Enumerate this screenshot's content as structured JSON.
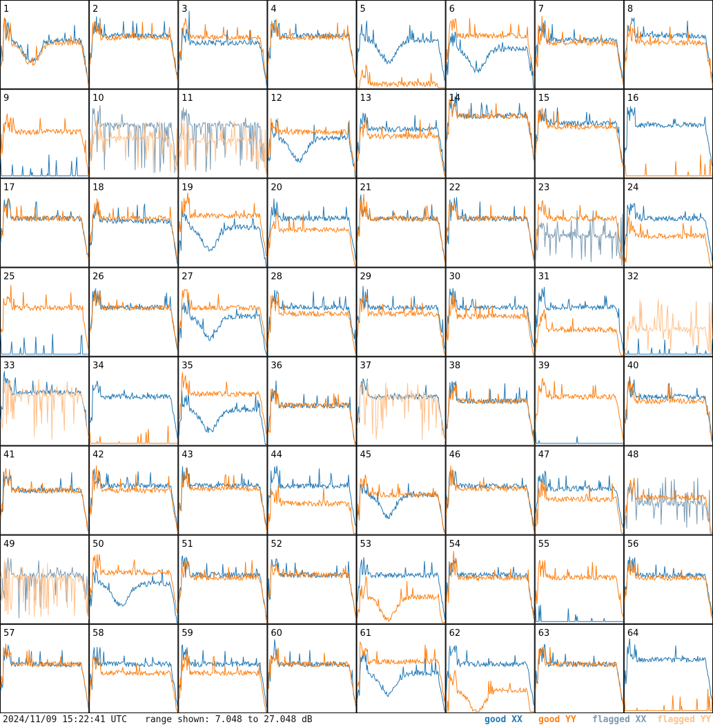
{
  "footer": {
    "timestamp": "2024/11/09 15:22:41 UTC",
    "range_text": "range shown: 7.048 to 27.048 dB"
  },
  "legend": [
    {
      "label": "good XX",
      "color": "#1f77b4"
    },
    {
      "label": "good YY",
      "color": "#ff7f0e"
    },
    {
      "label": "flagged XX",
      "color": "#7a9ab2"
    },
    {
      "label": "flagged YY",
      "color": "#ffc08a"
    }
  ],
  "chart_data": {
    "type": "line",
    "range_db": [
      7.048,
      27.048
    ],
    "layout": "8x8 small multiples",
    "panels": [
      {
        "id": "1",
        "xx": "dip",
        "yy": "good",
        "xx_level": 0.55,
        "yy_level": 0.52,
        "yy_variant": "dip"
      },
      {
        "id": "2",
        "xx": "good",
        "yy": "good",
        "xx_level": 0.6,
        "yy_level": 0.58
      },
      {
        "id": "3",
        "xx": "good",
        "yy": "good",
        "xx_level": 0.52,
        "yy_level": 0.58
      },
      {
        "id": "4",
        "xx": "good",
        "yy": "good",
        "xx_level": 0.6,
        "yy_level": 0.58
      },
      {
        "id": "5",
        "xx": "dip",
        "yy": "good",
        "xx_level": 0.55,
        "yy_level": 0.05,
        "yy_variant": "dead"
      },
      {
        "id": "6",
        "xx": "dip",
        "yy": "good",
        "xx_level": 0.45,
        "yy_level": 0.6
      },
      {
        "id": "7",
        "xx": "good",
        "yy": "good",
        "xx_level": 0.55,
        "yy_level": 0.52
      },
      {
        "id": "8",
        "xx": "good",
        "yy": "good",
        "xx_level": 0.6,
        "yy_level": 0.52
      },
      {
        "id": "9",
        "xx": "dead",
        "yy": "good",
        "xx_level": 0.05,
        "yy_level": 0.52
      },
      {
        "id": "10",
        "xx": "flagged",
        "yy": "flagged",
        "xx_level": 0.6,
        "yy_level": 0.45
      },
      {
        "id": "11",
        "xx": "flagged",
        "yy": "flagged",
        "xx_level": 0.6,
        "yy_level": 0.42
      },
      {
        "id": "12",
        "xx": "dip",
        "yy": "good",
        "xx_level": 0.45,
        "yy_level": 0.52
      },
      {
        "id": "13",
        "xx": "good",
        "yy": "good",
        "xx_level": 0.55,
        "yy_level": 0.47
      },
      {
        "id": "14",
        "xx": "good",
        "yy": "good",
        "xx_level": 0.7,
        "yy_level": 0.7
      },
      {
        "id": "15",
        "xx": "good",
        "yy": "good",
        "xx_level": 0.62,
        "yy_level": 0.58
      },
      {
        "id": "16",
        "xx": "good",
        "yy": "dead",
        "xx_level": 0.6,
        "yy_level": 0.05
      },
      {
        "id": "17",
        "xx": "good",
        "yy": "good",
        "xx_level": 0.55,
        "yy_level": 0.55
      },
      {
        "id": "18",
        "xx": "good",
        "yy": "good",
        "xx_level": 0.52,
        "yy_level": 0.55
      },
      {
        "id": "19",
        "xx": "dip",
        "yy": "good",
        "xx_level": 0.45,
        "yy_level": 0.58
      },
      {
        "id": "20",
        "xx": "good",
        "yy": "good",
        "xx_level": 0.55,
        "yy_level": 0.42
      },
      {
        "id": "21",
        "xx": "good",
        "yy": "good",
        "xx_level": 0.55,
        "yy_level": 0.55
      },
      {
        "id": "22",
        "xx": "good",
        "yy": "good",
        "xx_level": 0.55,
        "yy_level": 0.55
      },
      {
        "id": "23",
        "xx": "flagged",
        "yy": "good",
        "xx_level": 0.35,
        "yy_level": 0.55
      },
      {
        "id": "24",
        "xx": "good",
        "yy": "good",
        "xx_level": 0.55,
        "yy_level": 0.35
      },
      {
        "id": "25",
        "xx": "dead",
        "yy": "good",
        "xx_level": 0.05,
        "yy_level": 0.55
      },
      {
        "id": "26",
        "xx": "good",
        "yy": "good",
        "xx_level": 0.55,
        "yy_level": 0.55
      },
      {
        "id": "27",
        "xx": "dip",
        "yy": "good",
        "xx_level": 0.45,
        "yy_level": 0.55
      },
      {
        "id": "28",
        "xx": "good",
        "yy": "good",
        "xx_level": 0.55,
        "yy_level": 0.48
      },
      {
        "id": "29",
        "xx": "good",
        "yy": "good",
        "xx_level": 0.55,
        "yy_level": 0.48
      },
      {
        "id": "30",
        "xx": "good",
        "yy": "good",
        "xx_level": 0.55,
        "yy_level": 0.45
      },
      {
        "id": "31",
        "xx": "good",
        "yy": "good",
        "xx_level": 0.55,
        "yy_level": 0.3
      },
      {
        "id": "32",
        "xx": "dead",
        "yy": "flagged",
        "xx_level": 0.05,
        "yy_level": 0.3
      },
      {
        "id": "33",
        "xx": "good",
        "yy": "flagged",
        "xx_level": 0.6,
        "yy_level": 0.58
      },
      {
        "id": "34",
        "xx": "good",
        "yy": "dead",
        "xx_level": 0.55,
        "yy_level": 0.05
      },
      {
        "id": "35",
        "xx": "dip",
        "yy": "good",
        "xx_level": 0.4,
        "yy_level": 0.58
      },
      {
        "id": "36",
        "xx": "good",
        "yy": "good",
        "xx_level": 0.45,
        "yy_level": 0.45
      },
      {
        "id": "37",
        "xx": "good",
        "yy": "flagged",
        "xx_level": 0.55,
        "yy_level": 0.55
      },
      {
        "id": "38",
        "xx": "good",
        "yy": "good",
        "xx_level": 0.5,
        "yy_level": 0.5
      },
      {
        "id": "39",
        "xx": "dead",
        "yy": "good",
        "xx_level": 0.05,
        "yy_level": 0.55
      },
      {
        "id": "40",
        "xx": "good",
        "yy": "good",
        "xx_level": 0.55,
        "yy_level": 0.5
      },
      {
        "id": "41",
        "xx": "good",
        "yy": "good",
        "xx_level": 0.5,
        "yy_level": 0.5
      },
      {
        "id": "42",
        "xx": "good",
        "yy": "good",
        "xx_level": 0.55,
        "yy_level": 0.5
      },
      {
        "id": "43",
        "xx": "good",
        "yy": "good",
        "xx_level": 0.55,
        "yy_level": 0.52
      },
      {
        "id": "44",
        "xx": "good",
        "yy": "good",
        "xx_level": 0.55,
        "yy_level": 0.35
      },
      {
        "id": "45",
        "xx": "dip",
        "yy": "good",
        "xx_level": 0.45,
        "yy_level": 0.45
      },
      {
        "id": "46",
        "xx": "good",
        "yy": "good",
        "xx_level": 0.55,
        "yy_level": 0.52
      },
      {
        "id": "47",
        "xx": "good",
        "yy": "good",
        "xx_level": 0.52,
        "yy_level": 0.4
      },
      {
        "id": "48",
        "xx": "flagged",
        "yy": "good",
        "xx_level": 0.35,
        "yy_level": 0.42
      },
      {
        "id": "49",
        "xx": "flagged",
        "yy": "flagged",
        "xx_level": 0.55,
        "yy_level": 0.52
      },
      {
        "id": "50",
        "xx": "dip",
        "yy": "good",
        "xx_level": 0.45,
        "yy_level": 0.58
      },
      {
        "id": "51",
        "xx": "good",
        "yy": "good",
        "xx_level": 0.55,
        "yy_level": 0.52
      },
      {
        "id": "52",
        "xx": "good",
        "yy": "good",
        "xx_level": 0.55,
        "yy_level": 0.55
      },
      {
        "id": "53",
        "xx": "good",
        "yy": "good",
        "xx_level": 0.55,
        "yy_level": 0.3,
        "yy_variant": "dip"
      },
      {
        "id": "54",
        "xx": "good",
        "yy": "good",
        "xx_level": 0.55,
        "yy_level": 0.52
      },
      {
        "id": "55",
        "xx": "dead",
        "yy": "good",
        "xx_level": 0.05,
        "yy_level": 0.52
      },
      {
        "id": "56",
        "xx": "good",
        "yy": "good",
        "xx_level": 0.55,
        "yy_level": 0.52
      },
      {
        "id": "57",
        "xx": "good",
        "yy": "good",
        "xx_level": 0.55,
        "yy_level": 0.55
      },
      {
        "id": "58",
        "xx": "good",
        "yy": "good",
        "xx_level": 0.55,
        "yy_level": 0.45
      },
      {
        "id": "59",
        "xx": "good",
        "yy": "good",
        "xx_level": 0.55,
        "yy_level": 0.45
      },
      {
        "id": "60",
        "xx": "good",
        "yy": "good",
        "xx_level": 0.55,
        "yy_level": 0.55
      },
      {
        "id": "61",
        "xx": "dip",
        "yy": "good",
        "xx_level": 0.45,
        "yy_level": 0.58
      },
      {
        "id": "62",
        "xx": "good",
        "yy": "good",
        "xx_level": 0.55,
        "yy_level": 0.25,
        "yy_variant": "dip"
      },
      {
        "id": "63",
        "xx": "good",
        "yy": "good",
        "xx_level": 0.55,
        "yy_level": 0.55
      },
      {
        "id": "64",
        "xx": "good",
        "yy": "dead",
        "xx_level": 0.6,
        "yy_level": 0.05
      }
    ]
  }
}
